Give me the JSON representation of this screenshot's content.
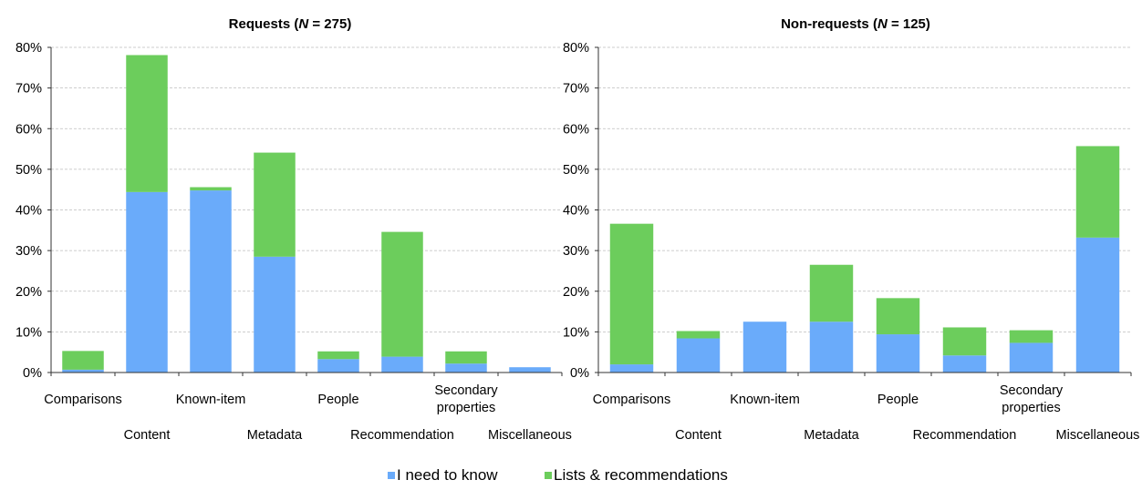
{
  "chart_data": [
    {
      "type": "bar",
      "stacked": true,
      "title": {
        "prefix": "Requests (",
        "italic": "N",
        "suffix": " = 275)"
      },
      "categories": [
        "Comparisons",
        "Content",
        "Known-item",
        "Metadata",
        "People",
        "Recommendation",
        "Secondary properties",
        "Miscellaneous"
      ],
      "series": [
        {
          "name": "I need to know",
          "color": "#6aabfa",
          "values": [
            0.7,
            44.4,
            44.8,
            28.5,
            3.3,
            3.9,
            2.2,
            1.3
          ]
        },
        {
          "name": "Lists & recommendations",
          "color": "#6ccd5c",
          "values": [
            4.6,
            33.7,
            0.8,
            25.6,
            1.9,
            30.7,
            3.0,
            0
          ]
        }
      ],
      "y_ticks": [
        "0%",
        "10%",
        "20%",
        "30%",
        "40%",
        "50%",
        "60%",
        "70%",
        "80%"
      ],
      "ylim": [
        0,
        80
      ],
      "grid": true
    },
    {
      "type": "bar",
      "stacked": true,
      "title": {
        "prefix": "Non-requests (",
        "italic": "N",
        "suffix": " = 125)"
      },
      "categories": [
        "Comparisons",
        "Content",
        "Known-item",
        "Metadata",
        "People",
        "Recommendation",
        "Secondary properties",
        "Miscellaneous"
      ],
      "series": [
        {
          "name": "I need to know",
          "color": "#6aabfa",
          "values": [
            2.0,
            8.4,
            12.5,
            12.5,
            9.4,
            4.2,
            7.3,
            33.2
          ]
        },
        {
          "name": "Lists & recommendations",
          "color": "#6ccd5c",
          "values": [
            34.6,
            1.8,
            0,
            14.0,
            8.9,
            6.9,
            3.1,
            22.5
          ]
        }
      ],
      "y_ticks": [
        "0%",
        "10%",
        "20%",
        "30%",
        "40%",
        "50%",
        "60%",
        "70%",
        "80%"
      ],
      "ylim": [
        0,
        80
      ],
      "grid": true
    }
  ],
  "legend": {
    "placement": "bottom-center",
    "items": [
      {
        "label": "I need to know",
        "color": "#6aabfa"
      },
      {
        "label": "Lists & recommendations",
        "color": "#6ccd5c"
      }
    ]
  }
}
